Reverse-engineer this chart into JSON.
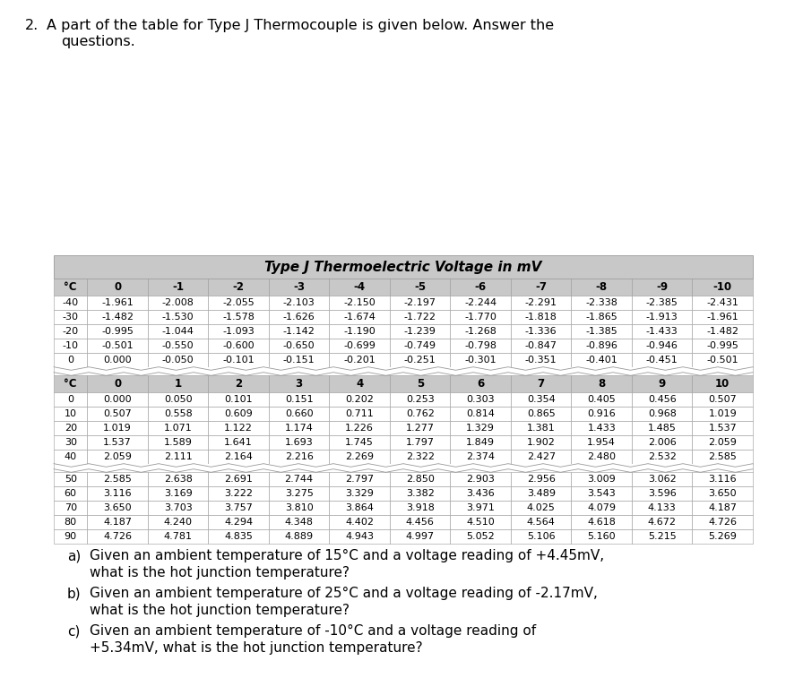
{
  "table_title": "Type J Thermoelectric Voltage in mV",
  "negative_header": [
    "°C",
    "0",
    "-1",
    "-2",
    "-3",
    "-4",
    "-5",
    "-6",
    "-7",
    "-8",
    "-9",
    "-10"
  ],
  "negative_rows": [
    [
      "-40",
      "-1.961",
      "-2.008",
      "-2.055",
      "-2.103",
      "-2.150",
      "-2.197",
      "-2.244",
      "-2.291",
      "-2.338",
      "-2.385",
      "-2.431"
    ],
    [
      "-30",
      "-1.482",
      "-1.530",
      "-1.578",
      "-1.626",
      "-1.674",
      "-1.722",
      "-1.770",
      "-1.818",
      "-1.865",
      "-1.913",
      "-1.961"
    ],
    [
      "-20",
      "-0.995",
      "-1.044",
      "-1.093",
      "-1.142",
      "-1.190",
      "-1.239",
      "-1.268",
      "-1.336",
      "-1.385",
      "-1.433",
      "-1.482"
    ],
    [
      "-10",
      "-0.501",
      "-0.550",
      "-0.600",
      "-0.650",
      "-0.699",
      "-0.749",
      "-0.798",
      "-0.847",
      "-0.896",
      "-0.946",
      "-0.995"
    ],
    [
      "0",
      "0.000",
      "-0.050",
      "-0.101",
      "-0.151",
      "-0.201",
      "-0.251",
      "-0.301",
      "-0.351",
      "-0.401",
      "-0.451",
      "-0.501"
    ]
  ],
  "positive_header": [
    "°C",
    "0",
    "1",
    "2",
    "3",
    "4",
    "5",
    "6",
    "7",
    "8",
    "9",
    "10"
  ],
  "positive_rows_top": [
    [
      "0",
      "0.000",
      "0.050",
      "0.101",
      "0.151",
      "0.202",
      "0.253",
      "0.303",
      "0.354",
      "0.405",
      "0.456",
      "0.507"
    ],
    [
      "10",
      "0.507",
      "0.558",
      "0.609",
      "0.660",
      "0.711",
      "0.762",
      "0.814",
      "0.865",
      "0.916",
      "0.968",
      "1.019"
    ],
    [
      "20",
      "1.019",
      "1.071",
      "1.122",
      "1.174",
      "1.226",
      "1.277",
      "1.329",
      "1.381",
      "1.433",
      "1.485",
      "1.537"
    ],
    [
      "30",
      "1.537",
      "1.589",
      "1.641",
      "1.693",
      "1.745",
      "1.797",
      "1.849",
      "1.902",
      "1.954",
      "2.006",
      "2.059"
    ],
    [
      "40",
      "2.059",
      "2.111",
      "2.164",
      "2.216",
      "2.269",
      "2.322",
      "2.374",
      "2.427",
      "2.480",
      "2.532",
      "2.585"
    ]
  ],
  "positive_rows_bottom": [
    [
      "50",
      "2.585",
      "2.638",
      "2.691",
      "2.744",
      "2.797",
      "2.850",
      "2.903",
      "2.956",
      "3.009",
      "3.062",
      "3.116"
    ],
    [
      "60",
      "3.116",
      "3.169",
      "3.222",
      "3.275",
      "3.329",
      "3.382",
      "3.436",
      "3.489",
      "3.543",
      "3.596",
      "3.650"
    ],
    [
      "70",
      "3.650",
      "3.703",
      "3.757",
      "3.810",
      "3.864",
      "3.918",
      "3.971",
      "4.025",
      "4.079",
      "4.133",
      "4.187"
    ],
    [
      "80",
      "4.187",
      "4.240",
      "4.294",
      "4.348",
      "4.402",
      "4.456",
      "4.510",
      "4.564",
      "4.618",
      "4.672",
      "4.726"
    ],
    [
      "90",
      "4.726",
      "4.781",
      "4.835",
      "4.889",
      "4.943",
      "4.997",
      "5.052",
      "5.106",
      "5.160",
      "5.215",
      "5.269"
    ]
  ],
  "table_bg": "#c8c8c8",
  "white_bg": "#ffffff",
  "border_color": "#999999",
  "title_bg": "#c0c0c0"
}
